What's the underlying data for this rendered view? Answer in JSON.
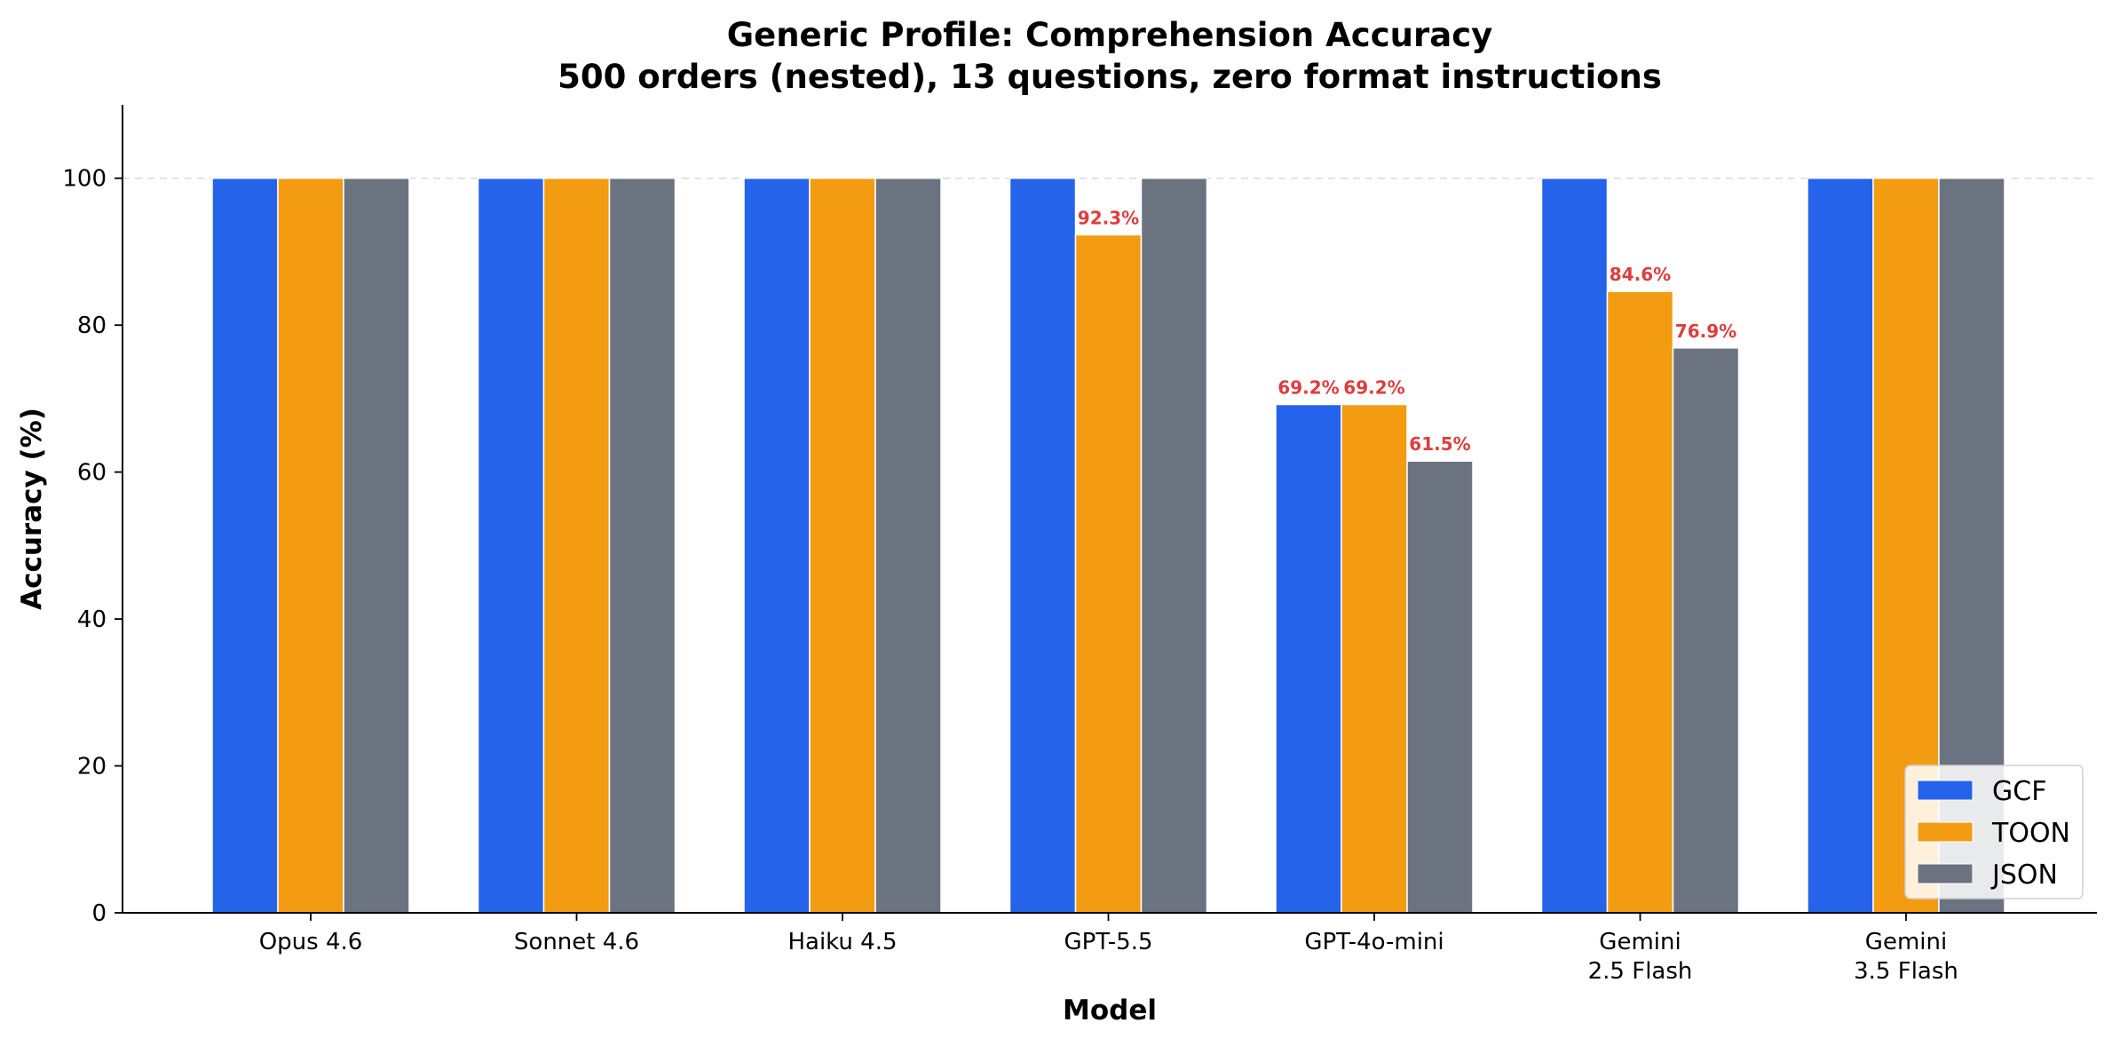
{
  "chart_data": {
    "type": "bar",
    "title": "Generic Profile: Comprehension Accuracy",
    "subtitle": "500 orders (nested), 13 questions, zero format instructions",
    "xlabel": "Model",
    "ylabel": "Accuracy (%)",
    "ylim": [
      0,
      110
    ],
    "yticks": [
      "0",
      "20",
      "40",
      "60",
      "80",
      "100"
    ],
    "categories": [
      [
        "Opus 4.6"
      ],
      [
        "Sonnet 4.6"
      ],
      [
        "Haiku 4.5"
      ],
      [
        "GPT-5.5"
      ],
      [
        "GPT-4o-mini"
      ],
      [
        "Gemini",
        "2.5 Flash"
      ],
      [
        "Gemini",
        "3.5 Flash"
      ]
    ],
    "series": [
      {
        "name": "GCF",
        "color": "#2563eb",
        "values": [
          100,
          100,
          100,
          100,
          69.2,
          100,
          100
        ]
      },
      {
        "name": "TOON",
        "color": "#f39c12",
        "values": [
          100,
          100,
          100,
          92.3,
          69.2,
          84.6,
          100
        ]
      },
      {
        "name": "JSON",
        "color": "#6b7280",
        "values": [
          100,
          100,
          100,
          100,
          61.5,
          76.9,
          100
        ]
      }
    ],
    "data_labels": [
      {
        "series": 1,
        "category": 3,
        "text": "92.3%"
      },
      {
        "series": 0,
        "category": 4,
        "text": "69.2%"
      },
      {
        "series": 1,
        "category": 4,
        "text": "69.2%"
      },
      {
        "series": 2,
        "category": 4,
        "text": "61.5%"
      },
      {
        "series": 1,
        "category": 5,
        "text": "84.6%"
      },
      {
        "series": 2,
        "category": 5,
        "text": "76.9%"
      }
    ],
    "label_color": "#e03c3c",
    "reference_line": 100,
    "grid": false,
    "legend_position": "lower-right"
  }
}
